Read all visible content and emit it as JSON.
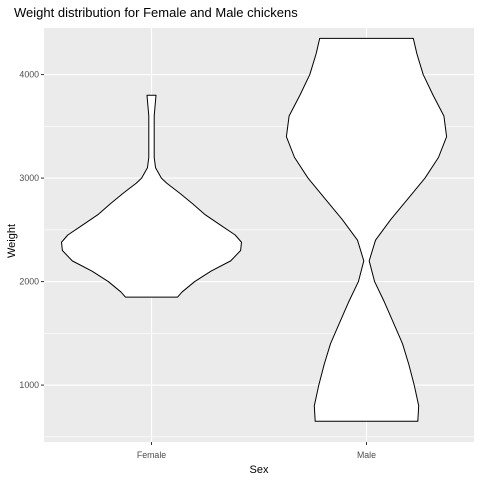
{
  "chart_data": {
    "type": "violin",
    "title": "Weight distribution for Female and Male chickens",
    "xlabel": "Sex",
    "ylabel": "Weight",
    "categories": [
      "Female",
      "Male"
    ],
    "ylim": [
      450,
      4450
    ],
    "yticks": [
      1000,
      2000,
      3000,
      4000
    ],
    "grid": true,
    "background": "#ebebeb",
    "gridline_color": "#ffffff",
    "violin_fill": "#ffffff",
    "violin_stroke": "#000000",
    "violins": [
      {
        "category": "Female",
        "min": 1850,
        "max": 3800,
        "profile": [
          [
            1850,
            0.29
          ],
          [
            1900,
            0.34
          ],
          [
            2000,
            0.48
          ],
          [
            2100,
            0.66
          ],
          [
            2200,
            0.88
          ],
          [
            2300,
            0.99
          ],
          [
            2380,
            1.0
          ],
          [
            2450,
            0.93
          ],
          [
            2550,
            0.76
          ],
          [
            2650,
            0.59
          ],
          [
            2750,
            0.46
          ],
          [
            2850,
            0.32
          ],
          [
            2950,
            0.17
          ],
          [
            3000,
            0.11
          ],
          [
            3100,
            0.045
          ],
          [
            3200,
            0.03
          ],
          [
            3300,
            0.03
          ],
          [
            3400,
            0.03
          ],
          [
            3500,
            0.03
          ],
          [
            3600,
            0.03
          ],
          [
            3700,
            0.04
          ],
          [
            3800,
            0.05
          ]
        ]
      },
      {
        "category": "Male",
        "min": 650,
        "max": 4350,
        "profile": [
          [
            650,
            0.57
          ],
          [
            800,
            0.58
          ],
          [
            1000,
            0.53
          ],
          [
            1200,
            0.47
          ],
          [
            1400,
            0.4
          ],
          [
            1600,
            0.3
          ],
          [
            1800,
            0.2
          ],
          [
            2000,
            0.09
          ],
          [
            2200,
            0.03
          ],
          [
            2400,
            0.1
          ],
          [
            2600,
            0.27
          ],
          [
            2800,
            0.46
          ],
          [
            3000,
            0.65
          ],
          [
            3200,
            0.8
          ],
          [
            3400,
            0.89
          ],
          [
            3600,
            0.86
          ],
          [
            3800,
            0.74
          ],
          [
            4000,
            0.63
          ],
          [
            4200,
            0.56
          ],
          [
            4350,
            0.52
          ]
        ]
      }
    ]
  }
}
